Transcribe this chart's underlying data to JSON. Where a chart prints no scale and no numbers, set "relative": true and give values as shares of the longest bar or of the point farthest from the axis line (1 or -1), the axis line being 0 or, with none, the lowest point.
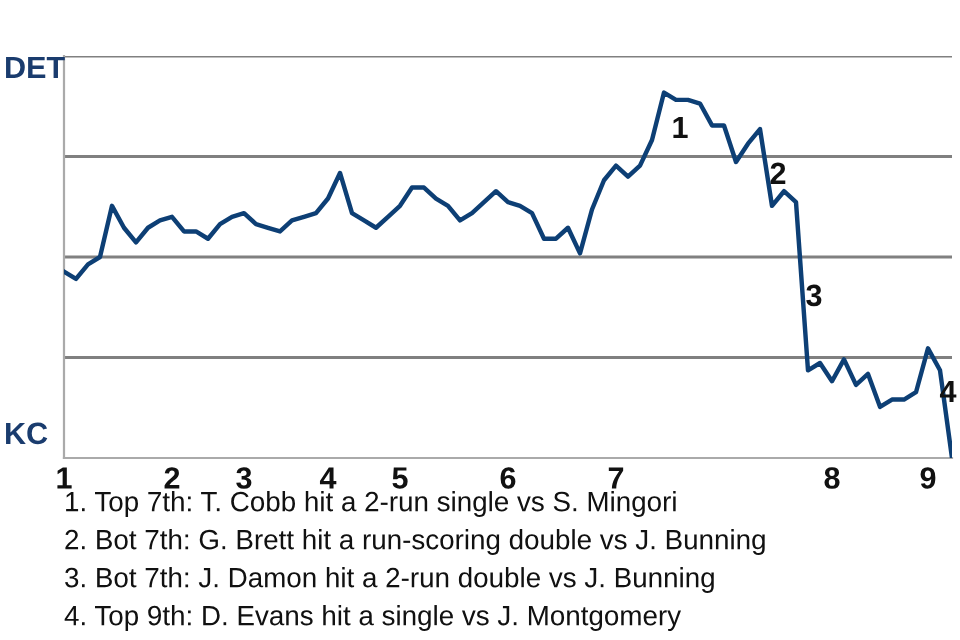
{
  "chart_data": {
    "type": "line",
    "relative": true,
    "categories": [
      "1",
      null,
      null,
      null,
      null,
      null,
      null,
      null,
      null,
      "2",
      null,
      null,
      null,
      null,
      null,
      "3",
      null,
      null,
      null,
      null,
      null,
      null,
      "4",
      null,
      null,
      null,
      null,
      null,
      "5",
      null,
      null,
      null,
      null,
      null,
      null,
      null,
      null,
      "6",
      null,
      null,
      null,
      null,
      null,
      null,
      null,
      null,
      "7",
      null,
      null,
      null,
      null,
      null,
      null,
      null,
      null,
      null,
      null,
      null,
      null,
      null,
      null,
      null,
      null,
      null,
      "8",
      null,
      null,
      null,
      null,
      null,
      null,
      null,
      "9",
      null,
      null
    ],
    "series": [
      {
        "color": "#0d3f75",
        "values": [
          0.51,
          0.49,
          0.53,
          0.55,
          0.69,
          0.63,
          0.59,
          0.63,
          0.65,
          0.66,
          0.62,
          0.62,
          0.6,
          0.64,
          0.66,
          0.67,
          0.64,
          0.63,
          0.62,
          0.65,
          0.66,
          0.67,
          0.71,
          0.78,
          0.67,
          0.65,
          0.63,
          0.66,
          0.69,
          0.74,
          0.74,
          0.71,
          0.69,
          0.65,
          0.67,
          0.7,
          0.73,
          0.7,
          0.69,
          0.67,
          0.6,
          0.6,
          0.63,
          0.56,
          0.68,
          0.76,
          0.8,
          0.77,
          0.8,
          0.87,
          1,
          0.98,
          0.98,
          0.97,
          0.91,
          0.91,
          0.81,
          0.86,
          0.9,
          0.69,
          0.73,
          0.7,
          0.24,
          0.26,
          0.21,
          0.27,
          0.2,
          0.23,
          0.14,
          0.16,
          0.16,
          0.18,
          0.3,
          0.24,
          0
        ]
      }
    ],
    "grid": "y",
    "line_style": "solid",
    "annotations": [
      "DET",
      "KC",
      "1",
      "2",
      "3",
      "4",
      "1. Top 7th: T. Cobb hit a 2-run single vs S. Mingori",
      "2. Bot 7th: G. Brett hit a run-scoring double vs J. Bunning",
      "3. Bot 7th: J. Damon hit a 2-run double vs J. Bunning",
      "4. Top 9th: D. Evans hit a single vs J. Montgomery"
    ]
  }
}
